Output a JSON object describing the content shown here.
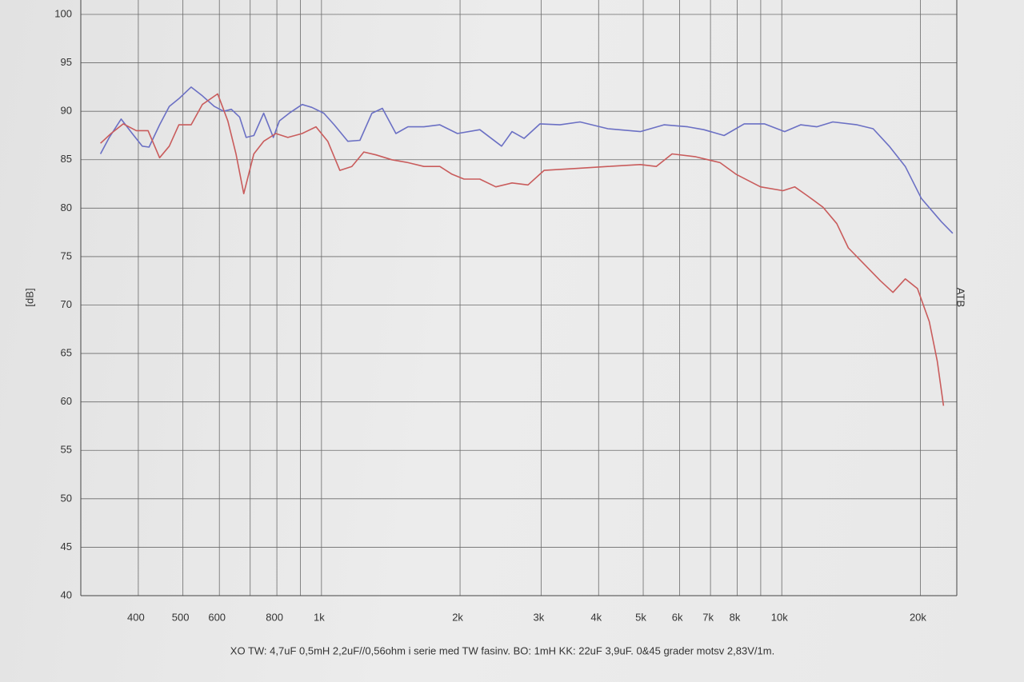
{
  "chart_data": {
    "type": "line",
    "y_label": "[dB]",
    "y2_label": "ATB",
    "caption": "XO TW: 4,7uF 0,5mH 2,2uF//0,56ohm i serie med TW fasinv. BO: 1mH KK: 22uF 3,9uF. 0&45 grader motsv 2,83V/1m.",
    "x_scale": "log",
    "grid": true,
    "xlim": [
      300,
      24000
    ],
    "xticks": [
      400,
      500,
      600,
      800,
      {
        "value": 1000,
        "label": "1k"
      },
      {
        "value": 2000,
        "label": "2k"
      },
      {
        "value": 3000,
        "label": "3k"
      },
      {
        "value": 4000,
        "label": "4k"
      },
      {
        "value": 5000,
        "label": "5k"
      },
      {
        "value": 6000,
        "label": "6k"
      },
      {
        "value": 7000,
        "label": "7k"
      },
      {
        "value": 8000,
        "label": "8k"
      },
      {
        "value": 10000,
        "label": "10k"
      },
      {
        "value": 20000,
        "label": "20k"
      }
    ],
    "x_minor_grid": [
      700,
      900,
      9000
    ],
    "ylim": [
      40,
      100
    ],
    "yticks": [
      40,
      45,
      50,
      55,
      60,
      65,
      70,
      75,
      80,
      85,
      90,
      95,
      100
    ],
    "series": [
      {
        "color": "#6b70c4",
        "x": [
          331,
          346,
          367,
          388,
          408,
          422,
          445,
          467,
          490,
          521,
          551,
          585,
          613,
          637,
          664,
          686,
          713,
          749,
          786,
          810,
          851,
          908,
          953,
          1012,
          1066,
          1141,
          1212,
          1287,
          1356,
          1451,
          1541,
          1669,
          1808,
          1974,
          2208,
          2462,
          2594,
          2755,
          2983,
          3296,
          3646,
          4190,
          4927,
          5548,
          6249,
          6770,
          7492,
          8288,
          9168,
          10142,
          10991,
          11911,
          12909,
          14571,
          15792,
          17114,
          18548,
          20100,
          22215,
          23512
        ],
        "values": [
          85.6,
          87.3,
          89.2,
          87.7,
          86.4,
          86.3,
          88.6,
          90.5,
          91.3,
          92.5,
          91.6,
          90.5,
          90.0,
          90.2,
          89.4,
          87.3,
          87.5,
          89.8,
          87.3,
          89.0,
          89.8,
          90.7,
          90.4,
          89.8,
          88.6,
          86.9,
          87.0,
          89.8,
          90.3,
          87.7,
          88.4,
          88.4,
          88.6,
          87.7,
          88.1,
          86.4,
          87.9,
          87.2,
          88.7,
          88.6,
          88.9,
          88.2,
          87.9,
          88.6,
          88.4,
          88.1,
          87.5,
          88.7,
          88.7,
          87.9,
          88.6,
          88.4,
          88.9,
          88.6,
          88.2,
          86.4,
          84.3,
          81.0,
          78.6,
          77.4
        ]
      },
      {
        "color": "#c95c5c",
        "x": [
          331,
          349,
          371,
          396,
          420,
          445,
          467,
          490,
          521,
          551,
          595,
          626,
          652,
          678,
          713,
          749,
          796,
          845,
          908,
          973,
          1032,
          1096,
          1164,
          1236,
          1313,
          1422,
          1541,
          1669,
          1808,
          1921,
          2040,
          2208,
          2392,
          2594,
          2810,
          3045,
          3574,
          4190,
          4927,
          5337,
          5776,
          6502,
          7341,
          7952,
          8990,
          10058,
          10670,
          11352,
          12286,
          13167,
          13947,
          15113,
          16379,
          17439,
          18548,
          19709,
          20916,
          21764,
          22457
        ],
        "values": [
          86.7,
          87.7,
          88.7,
          88.0,
          88.0,
          85.2,
          86.4,
          88.6,
          88.6,
          90.7,
          91.8,
          89.0,
          85.6,
          81.5,
          85.6,
          86.9,
          87.7,
          87.3,
          87.7,
          88.4,
          86.9,
          83.9,
          84.3,
          85.8,
          85.5,
          85.0,
          84.7,
          84.3,
          84.3,
          83.5,
          83.0,
          83.0,
          82.2,
          82.6,
          82.4,
          83.9,
          84.1,
          84.3,
          84.5,
          84.3,
          85.6,
          85.3,
          84.7,
          83.5,
          82.2,
          81.8,
          82.2,
          81.3,
          80.1,
          78.4,
          75.9,
          74.2,
          72.5,
          71.3,
          72.7,
          71.7,
          68.3,
          64.2,
          59.6
        ]
      }
    ]
  }
}
